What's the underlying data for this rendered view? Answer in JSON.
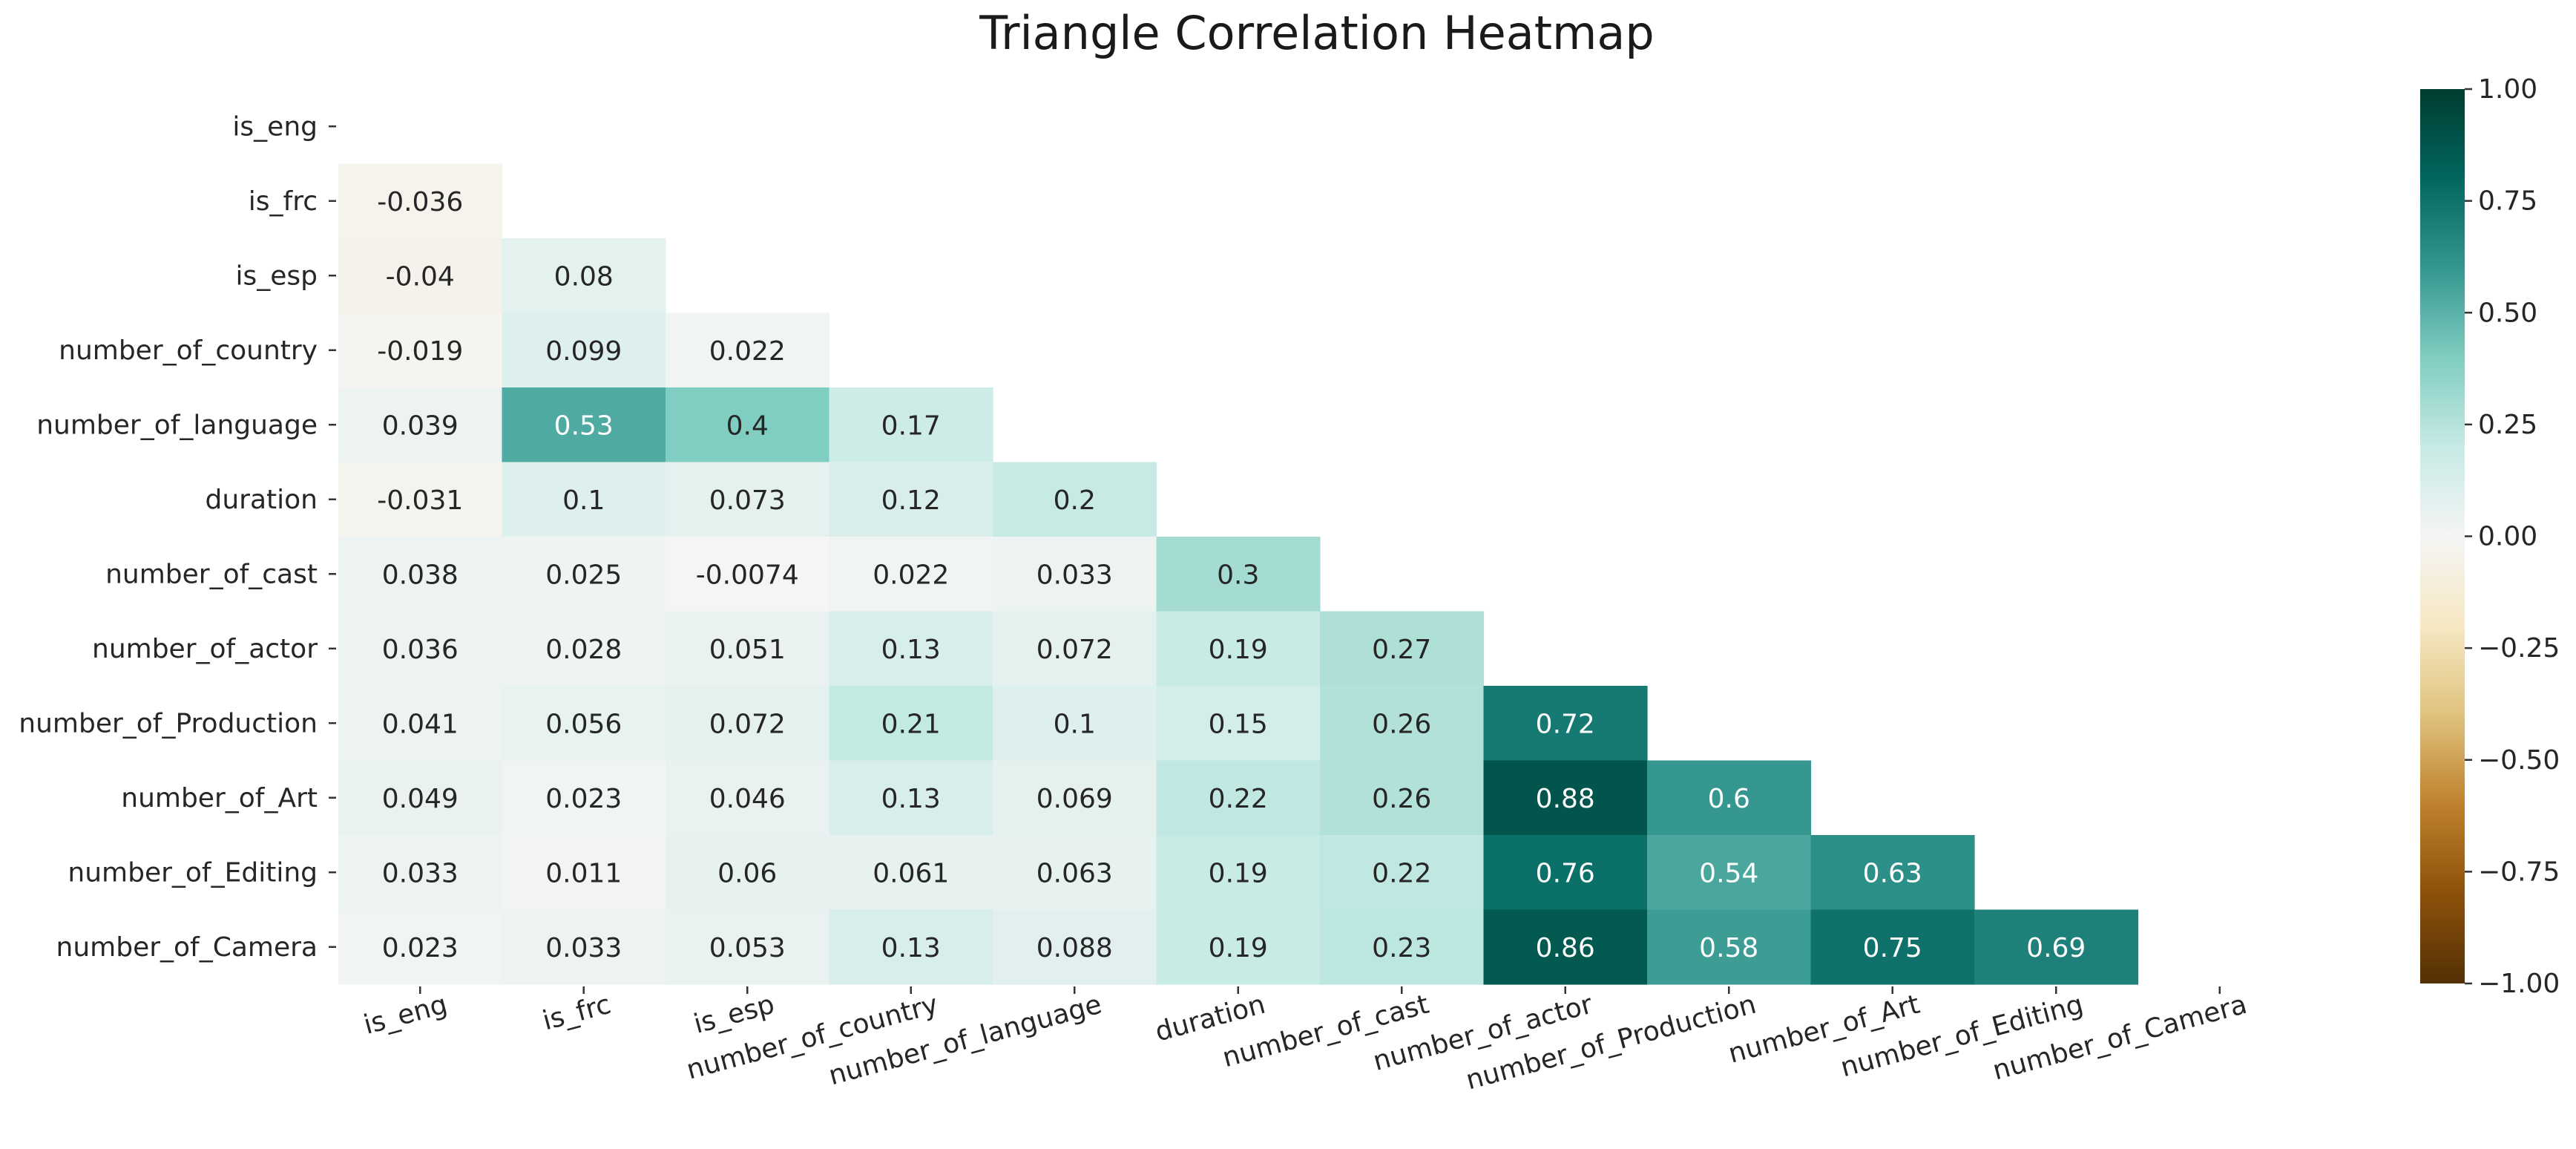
{
  "chart_data": {
    "type": "heatmap",
    "title": "Triangle Correlation Heatmap",
    "mask": "upper-triangle",
    "row_labels": [
      "is_eng",
      "is_frc",
      "is_esp",
      "number_of_country",
      "number_of_language",
      "duration",
      "number_of_cast",
      "number_of_actor",
      "number_of_Production",
      "number_of_Art",
      "number_of_Editing",
      "number_of_Camera"
    ],
    "col_labels": [
      "is_eng",
      "is_frc",
      "is_esp",
      "number_of_country",
      "number_of_language",
      "duration",
      "number_of_cast",
      "number_of_actor",
      "number_of_Production",
      "number_of_Art",
      "number_of_Editing",
      "number_of_Camera"
    ],
    "cells": [
      [],
      [
        "-0.036"
      ],
      [
        "-0.04",
        "0.08"
      ],
      [
        "-0.019",
        "0.099",
        "0.022"
      ],
      [
        "0.039",
        "0.53",
        "0.4",
        "0.17"
      ],
      [
        "-0.031",
        "0.1",
        "0.073",
        "0.12",
        "0.2"
      ],
      [
        "0.038",
        "0.025",
        "-0.0074",
        "0.022",
        "0.033",
        "0.3"
      ],
      [
        "0.036",
        "0.028",
        "0.051",
        "0.13",
        "0.072",
        "0.19",
        "0.27"
      ],
      [
        "0.041",
        "0.056",
        "0.072",
        "0.21",
        "0.1",
        "0.15",
        "0.26",
        "0.72"
      ],
      [
        "0.049",
        "0.023",
        "0.046",
        "0.13",
        "0.069",
        "0.22",
        "0.26",
        "0.88",
        "0.6"
      ],
      [
        "0.033",
        "0.011",
        "0.06",
        "0.061",
        "0.063",
        "0.19",
        "0.22",
        "0.76",
        "0.54",
        "0.63"
      ],
      [
        "0.023",
        "0.033",
        "0.053",
        "0.13",
        "0.088",
        "0.19",
        "0.23",
        "0.86",
        "0.58",
        "0.75",
        "0.69"
      ]
    ],
    "colormap": "BrBG",
    "colorbar": {
      "vmin": -1,
      "vmax": 1,
      "ticks": [
        "1.00",
        "0.75",
        "0.50",
        "0.25",
        "0.00",
        "−0.25",
        "−0.50",
        "−0.75",
        "−1.00"
      ]
    }
  }
}
